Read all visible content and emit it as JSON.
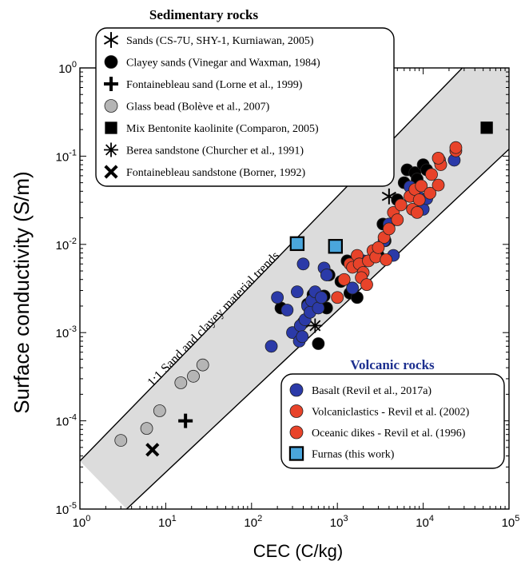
{
  "chart_data": {
    "type": "scatter",
    "xscale": "log",
    "yscale": "log",
    "xlim": [
      1,
      100000
    ],
    "ylim": [
      1e-05,
      1
    ],
    "xlabel": "CEC (C/kg)",
    "ylabel": "Surface conductivity (S/m)",
    "xticks": [
      {
        "value": 1,
        "base": "10",
        "exp": "0"
      },
      {
        "value": 10,
        "base": "10",
        "exp": "1"
      },
      {
        "value": 100,
        "base": "10",
        "exp": "2"
      },
      {
        "value": 1000,
        "base": "10",
        "exp": "3"
      },
      {
        "value": 10000,
        "base": "10",
        "exp": "4"
      },
      {
        "value": 100000,
        "base": "10",
        "exp": "5"
      }
    ],
    "yticks": [
      {
        "value": 1,
        "base": "10",
        "exp": "0"
      },
      {
        "value": 0.1,
        "base": "10",
        "exp": "-1"
      },
      {
        "value": 0.01,
        "base": "10",
        "exp": "-2"
      },
      {
        "value": 0.001,
        "base": "10",
        "exp": "-3"
      },
      {
        "value": 0.0001,
        "base": "10",
        "exp": "-4"
      },
      {
        "value": 1e-05,
        "base": "10",
        "exp": "-5"
      }
    ],
    "trend_band": {
      "label": "1:1 Sand and clayey material trends",
      "upper_line": [
        [
          1,
          3.5e-05
        ],
        [
          100000,
          3.5
        ]
      ],
      "lower_line": [
        [
          3.5,
          1e-05
        ],
        [
          100000,
          0.12
        ]
      ],
      "color": "#dcdcdc"
    },
    "groups": [
      {
        "heading": "Sedimentary rocks",
        "heading_color": "#000000",
        "series": [
          {
            "name": "Sands (CS-7U, SHY-1, Kurniawan, 2005)",
            "marker": "asterisk",
            "color": "#000000",
            "points": [
              [
                4000,
                0.035
              ]
            ]
          },
          {
            "name": "Clayey sands (Vinegar and Waxman, 1984)",
            "marker": "circle",
            "color": "#000000",
            "points": [
              [
                220,
                0.0019
              ],
              [
                400,
                0.0013
              ],
              [
                450,
                0.0021
              ],
              [
                520,
                0.0027
              ],
              [
                600,
                0.00075
              ],
              [
                700,
                0.0026
              ],
              [
                750,
                0.0019
              ],
              [
                800,
                0.0045
              ],
              [
                1100,
                0.0038
              ],
              [
                1300,
                0.0065
              ],
              [
                1400,
                0.0028
              ],
              [
                3000,
                0.0075
              ],
              [
                3400,
                0.017
              ],
              [
                3600,
                0.011
              ],
              [
                5000,
                0.032
              ],
              [
                6000,
                0.05
              ],
              [
                6500,
                0.07
              ],
              [
                8000,
                0.065
              ],
              [
                8500,
                0.055
              ],
              [
                10000,
                0.08
              ],
              [
                11000,
                0.07
              ],
              [
                1700,
                0.0025
              ]
            ]
          },
          {
            "name": "Fontainebleau sand (Lorne et al., 1999)",
            "marker": "plus",
            "color": "#000000",
            "points": [
              [
                17,
                0.0001
              ]
            ]
          },
          {
            "name": "Glass bead (Bolève et al., 2007)",
            "marker": "circle",
            "color": "#b5b5b5",
            "points": [
              [
                3,
                6e-05
              ],
              [
                6,
                8.2e-05
              ],
              [
                8.5,
                0.00013
              ],
              [
                15,
                0.00027
              ],
              [
                21,
                0.00032
              ],
              [
                27,
                0.00043
              ]
            ]
          },
          {
            "name": "Mix Bentonite kaolinite (Comparon, 2005)",
            "marker": "square",
            "color": "#000000",
            "points": [
              [
                55000,
                0.21
              ]
            ]
          },
          {
            "name": "Berea sandstone (Churcher et al., 1991)",
            "marker": "star",
            "color": "#000000",
            "points": [
              [
                550,
                0.0012
              ]
            ]
          },
          {
            "name": "Fontainebleau sandstone (Borner, 1992)",
            "marker": "cross",
            "color": "#000000",
            "points": [
              [
                7,
                4.7e-05
              ]
            ]
          }
        ]
      },
      {
        "heading": "Volcanic rocks",
        "heading_color": "#1c2f8f",
        "series": [
          {
            "name": "Basalt (Revil et al., 2017a)",
            "marker": "circle",
            "color": "#2b3aa8",
            "points": [
              [
                170,
                0.0007
              ],
              [
                200,
                0.0025
              ],
              [
                260,
                0.0018
              ],
              [
                300,
                0.001
              ],
              [
                340,
                0.0029
              ],
              [
                360,
                0.0008
              ],
              [
                370,
                0.0012
              ],
              [
                390,
                0.0009
              ],
              [
                400,
                0.006
              ],
              [
                420,
                0.0014
              ],
              [
                450,
                0.002
              ],
              [
                480,
                0.0017
              ],
              [
                500,
                0.0023
              ],
              [
                550,
                0.0029
              ],
              [
                600,
                0.0019
              ],
              [
                650,
                0.0025
              ],
              [
                700,
                0.0054
              ],
              [
                750,
                0.0045
              ],
              [
                1500,
                0.0032
              ],
              [
                2000,
                0.0065
              ],
              [
                3500,
                0.011
              ],
              [
                4000,
                0.017
              ],
              [
                4500,
                0.0075
              ],
              [
                7000,
                0.045
              ],
              [
                8500,
                0.036
              ],
              [
                10000,
                0.025
              ],
              [
                11000,
                0.033
              ],
              [
                23000,
                0.09
              ]
            ]
          },
          {
            "name": "Volcaniclastics - Revil et al. (2002)",
            "marker": "circle",
            "color": "#e8432a",
            "points": [
              [
                1000,
                0.0025
              ],
              [
                1200,
                0.004
              ],
              [
                1400,
                0.006
              ],
              [
                1500,
                0.0055
              ],
              [
                1700,
                0.0075
              ],
              [
                1800,
                0.006
              ],
              [
                2000,
                0.0048
              ],
              [
                2300,
                0.0065
              ],
              [
                2600,
                0.0085
              ],
              [
                2800,
                0.0072
              ],
              [
                3500,
                0.012
              ],
              [
                4000,
                0.015
              ],
              [
                4500,
                0.023
              ],
              [
                5500,
                0.028
              ],
              [
                7000,
                0.035
              ],
              [
                7500,
                0.025
              ],
              [
                8000,
                0.042
              ],
              [
                9000,
                0.032
              ],
              [
                9500,
                0.046
              ],
              [
                12000,
                0.038
              ],
              [
                12500,
                0.062
              ],
              [
                15000,
                0.047
              ],
              [
                15500,
                0.09
              ],
              [
                16000,
                0.08
              ],
              [
                24000,
                0.115
              ]
            ]
          },
          {
            "name": "Oceanic dikes - Revil et al. (1996)",
            "marker": "circle",
            "color": "#e8432a",
            "points": [
              [
                1900,
                0.0042
              ],
              [
                2200,
                0.0035
              ],
              [
                3000,
                0.0092
              ],
              [
                3700,
                0.0067
              ],
              [
                5000,
                0.019
              ],
              [
                8500,
                0.023
              ],
              [
                15000,
                0.095
              ],
              [
                24000,
                0.125
              ]
            ]
          },
          {
            "name": "Furnas (this work)",
            "marker": "square-outline",
            "color": "#4aa6dc",
            "points": [
              [
                340,
                0.0102
              ],
              [
                950,
                0.0095
              ]
            ]
          }
        ]
      }
    ]
  }
}
